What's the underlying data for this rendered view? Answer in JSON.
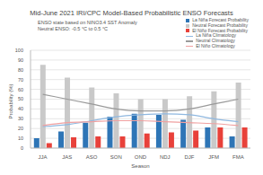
{
  "chart_data": {
    "type": "bar",
    "title": "Mid-June 2021 IRI/CPC Model-Based Probabilistic ENSO Forecasts",
    "subtitle": [
      "ENSO state based on NINO3.4 SST Anomaly",
      "Neutral ENSO: -0.5 °C to 0.5 °C"
    ],
    "x_label": "Season",
    "y_label": "Probability (%)",
    "categories": [
      "JJA",
      "JAS",
      "ASO",
      "SON",
      "OND",
      "NDJ",
      "DJF",
      "JFM",
      "FMA"
    ],
    "series": [
      {
        "name": "La Niña Forecast Probability",
        "type": "bar",
        "color": "#2e75b6",
        "values": [
          10,
          17,
          26,
          32,
          35,
          34,
          29,
          21,
          12
        ]
      },
      {
        "name": "Neutral Forecast Probability",
        "type": "bar",
        "color": "#c9c9c9",
        "values": [
          85,
          72,
          62,
          56,
          50,
          50,
          53,
          58,
          67
        ]
      },
      {
        "name": "El Niño Forecast Probability",
        "type": "bar",
        "color": "#e8413a",
        "values": [
          5,
          11,
          12,
          12,
          15,
          16,
          18,
          21,
          21
        ]
      },
      {
        "name": "La Niña Climatology",
        "type": "line",
        "color": "#8fb8e0",
        "values": [
          22,
          24,
          28,
          32,
          34,
          35,
          34,
          30,
          27
        ]
      },
      {
        "name": "Neutral Climatology",
        "type": "line",
        "color": "#9a9a9a",
        "values": [
          55,
          50,
          45,
          40,
          38,
          38,
          40,
          45,
          50
        ]
      },
      {
        "name": "El Niño Climatology",
        "type": "line",
        "color": "#f0a0a0",
        "values": [
          23,
          26,
          27,
          28,
          28,
          27,
          26,
          25,
          23
        ]
      }
    ],
    "ylim": [
      0,
      100
    ],
    "yticks": [
      0,
      10,
      20,
      30,
      40,
      50,
      60,
      70,
      80,
      90,
      100
    ],
    "grid": true,
    "legend": "upper right"
  }
}
